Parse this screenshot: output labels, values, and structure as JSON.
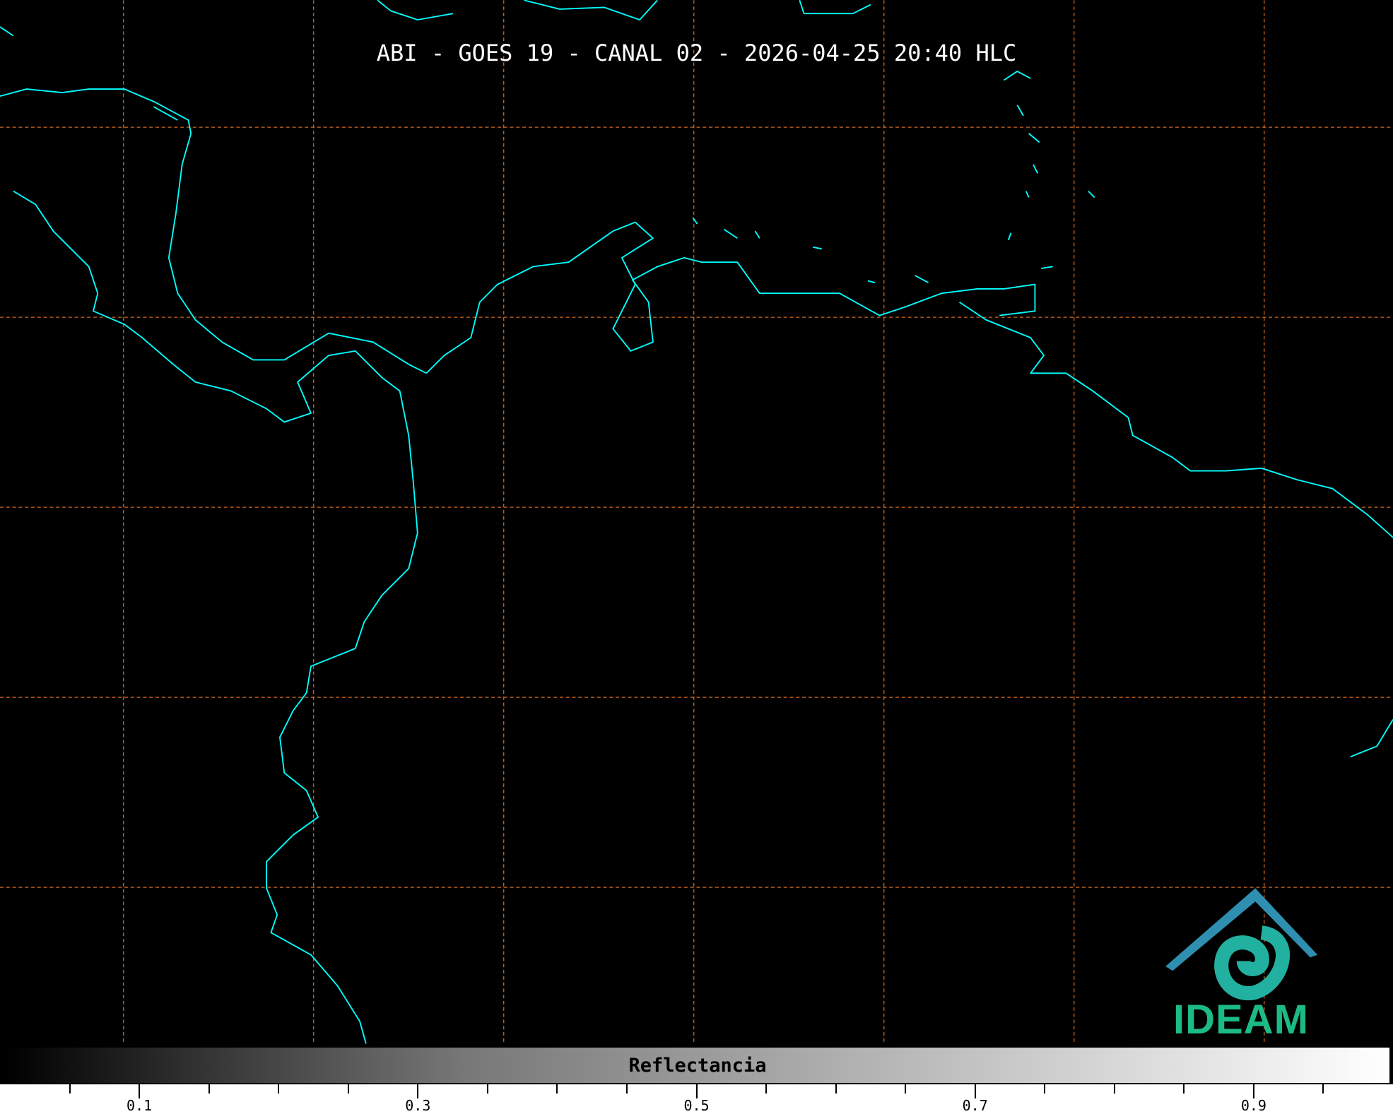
{
  "title": "ABI - GOES 19 - CANAL 02 - 2026-04-25 20:40 HLC",
  "colorbar": {
    "label": "Reflectancia",
    "range": [
      0,
      1
    ],
    "colormap": "grayscale black-to-white",
    "major_ticks": [
      "0.1",
      "0.3",
      "0.5",
      "0.7",
      "0.9"
    ],
    "minor_tick_step": 0.05
  },
  "map": {
    "coastline_color": "#00ffff",
    "graticule_color": "#d2691e",
    "graticule_style": "dashed",
    "background": "#000000"
  },
  "logo": {
    "text": "IDEAM",
    "color": "#1cba86",
    "roof_color": "#2f6fb8"
  }
}
